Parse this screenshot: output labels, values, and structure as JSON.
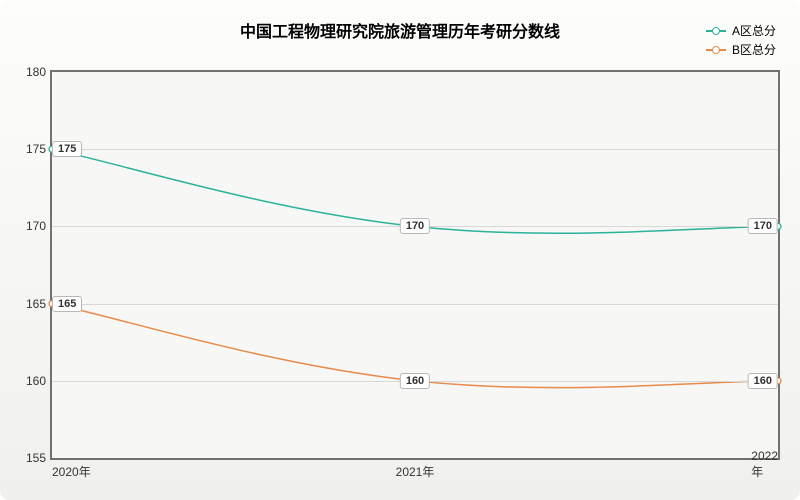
{
  "chart": {
    "type": "line",
    "title": "中国工程物理研究院旅游管理历年考研分数线",
    "title_fontsize": 16,
    "background_gradient": [
      "#fdfdfb",
      "#f0f0ee"
    ],
    "plot_background": "#f7f7f5",
    "border_color": "#717171",
    "grid_color": "#d8d8d6",
    "ylim": [
      155,
      180
    ],
    "ytick_step": 5,
    "yticks": [
      155,
      160,
      165,
      170,
      175,
      180
    ],
    "xcategories": [
      "2020年",
      "2021年",
      "2022年"
    ],
    "label_fontsize": 12,
    "data_label_fontsize": 11,
    "series": [
      {
        "name": "A区总分",
        "color": "#2bb39a",
        "line_width": 1.5,
        "marker": "circle",
        "marker_size": 6,
        "values": [
          175,
          170,
          170
        ]
      },
      {
        "name": "B区总分",
        "color": "#e78a4a",
        "line_width": 1.5,
        "marker": "circle",
        "marker_size": 6,
        "values": [
          165,
          160,
          160
        ]
      }
    ],
    "legend_position": "top-right"
  }
}
